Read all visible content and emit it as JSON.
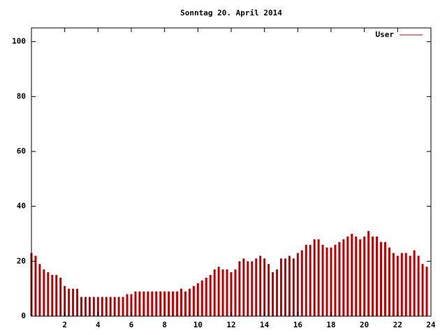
{
  "chart_data": {
    "type": "impulse",
    "title": "Sonntag 20. April 2014",
    "x": [
      0,
      0.25,
      0.5,
      0.75,
      1,
      1.25,
      1.5,
      1.75,
      2,
      2.25,
      2.5,
      2.75,
      3,
      3.25,
      3.5,
      3.75,
      4,
      4.25,
      4.5,
      4.75,
      5,
      5.25,
      5.5,
      5.75,
      6,
      6.25,
      6.5,
      6.75,
      7,
      7.25,
      7.5,
      7.75,
      8,
      8.25,
      8.5,
      8.75,
      9,
      9.25,
      9.5,
      9.75,
      10,
      10.25,
      10.5,
      10.75,
      11,
      11.25,
      11.5,
      11.75,
      12,
      12.25,
      12.5,
      12.75,
      13,
      13.25,
      13.5,
      13.75,
      14,
      14.25,
      14.5,
      14.75,
      15,
      15.25,
      15.5,
      15.75,
      16,
      16.25,
      16.5,
      16.75,
      17,
      17.25,
      17.5,
      17.75,
      18,
      18.25,
      18.5,
      18.75,
      19,
      19.25,
      19.5,
      19.75,
      20,
      20.25,
      20.5,
      20.75,
      21,
      21.25,
      21.5,
      21.75,
      22,
      22.25,
      22.5,
      22.75,
      23,
      23.25,
      23.5,
      23.75
    ],
    "series": [
      {
        "name": "User",
        "color": "#c00000",
        "values": [
          23,
          22,
          19,
          17,
          16,
          15,
          15,
          14,
          11,
          10,
          10,
          10,
          7,
          7,
          7,
          7,
          7,
          7,
          7,
          7,
          7,
          7,
          7,
          8,
          8,
          9,
          9,
          9,
          9,
          9,
          9,
          9,
          9,
          9,
          9,
          9,
          10,
          9,
          10,
          11,
          12,
          13,
          14,
          15,
          17,
          18,
          17,
          17,
          16,
          17,
          20,
          21,
          20,
          20,
          21,
          22,
          21,
          19,
          16,
          17,
          21,
          21,
          22,
          21,
          23,
          24,
          26,
          26,
          28,
          28,
          26,
          25,
          25,
          26,
          27,
          28,
          29,
          30,
          29,
          28,
          29,
          31,
          29,
          29,
          27,
          27,
          25,
          23,
          22,
          23,
          23,
          22,
          24,
          22,
          19,
          18
        ]
      }
    ],
    "xlim": [
      0,
      24
    ],
    "ylim": [
      0,
      105
    ],
    "xticks": [
      2,
      4,
      6,
      8,
      10,
      12,
      14,
      16,
      18,
      20,
      22,
      24
    ],
    "yticks": [
      0,
      20,
      40,
      60,
      80,
      100
    ],
    "legend": "top-right"
  }
}
